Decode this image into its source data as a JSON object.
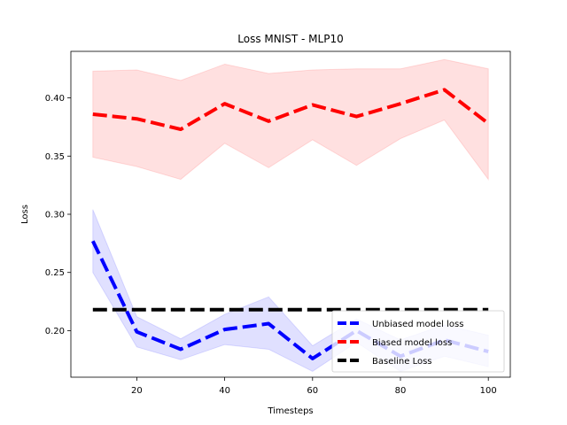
{
  "chart_data": {
    "type": "line",
    "title": "Loss MNIST - MLP10",
    "xlabel": "Timesteps",
    "ylabel": "Loss",
    "xlim": [
      5,
      105
    ],
    "ylim": [
      0.16,
      0.44
    ],
    "xticks": [
      20,
      40,
      60,
      80,
      100
    ],
    "yticks": [
      0.2,
      0.25,
      0.3,
      0.35,
      0.4
    ],
    "xtick_labels": [
      "20",
      "40",
      "60",
      "80",
      "100"
    ],
    "ytick_labels": [
      "0.20",
      "0.25",
      "0.30",
      "0.35",
      "0.40"
    ],
    "x": [
      10,
      20,
      30,
      40,
      50,
      60,
      70,
      80,
      90,
      100
    ],
    "grid": false,
    "legend_position": "lower right",
    "series": [
      {
        "name": "Unbiased model loss",
        "color": "#0000ff",
        "style": "dashed",
        "values": [
          0.277,
          0.199,
          0.184,
          0.201,
          0.206,
          0.176,
          0.2,
          0.178,
          0.192,
          0.182
        ],
        "band_upper": [
          0.304,
          0.212,
          0.193,
          0.214,
          0.229,
          0.187,
          0.21,
          0.192,
          0.205,
          0.196
        ],
        "band_lower": [
          0.25,
          0.186,
          0.175,
          0.188,
          0.184,
          0.165,
          0.19,
          0.165,
          0.178,
          0.169
        ]
      },
      {
        "name": "Biased model loss",
        "color": "#ff0000",
        "style": "dashed",
        "values": [
          0.386,
          0.382,
          0.373,
          0.395,
          0.38,
          0.394,
          0.384,
          0.395,
          0.407,
          0.378
        ],
        "band_upper": [
          0.423,
          0.424,
          0.415,
          0.429,
          0.421,
          0.424,
          0.425,
          0.425,
          0.433,
          0.425
        ],
        "band_lower": [
          0.349,
          0.341,
          0.33,
          0.361,
          0.34,
          0.364,
          0.342,
          0.365,
          0.381,
          0.33
        ]
      },
      {
        "name": "Baseline Loss",
        "color": "#000000",
        "style": "dashed",
        "values": [
          0.218,
          0.218,
          0.218,
          0.218,
          0.218,
          0.218,
          0.218,
          0.218,
          0.218,
          0.218
        ]
      }
    ]
  }
}
